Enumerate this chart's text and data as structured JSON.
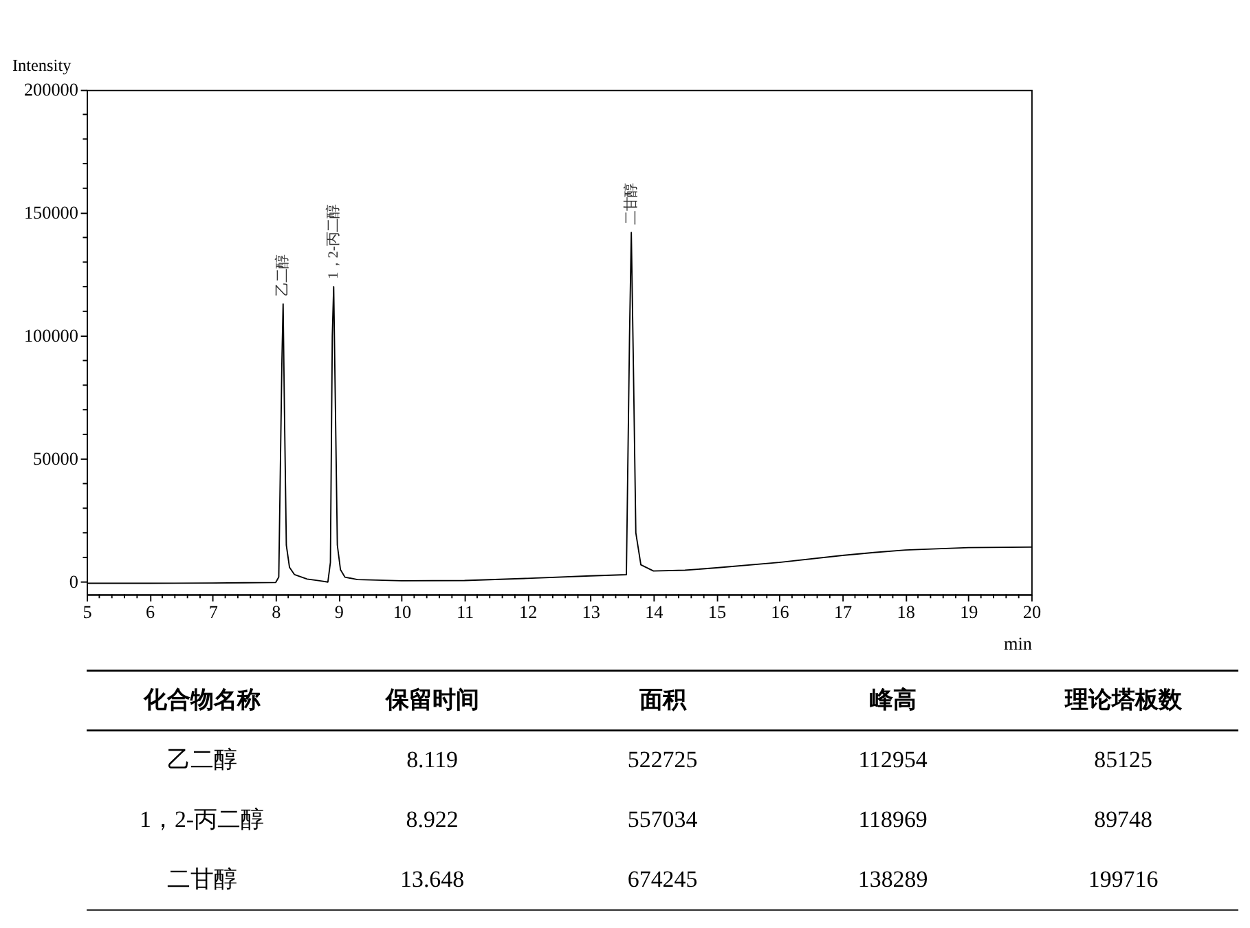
{
  "chart_data": [
    {
      "type": "line",
      "ylabel": "Intensity",
      "xlabel": "min",
      "series": [
        {
          "color": "#000000",
          "x": [
            5,
            6,
            7,
            7.5,
            8.0,
            8.05,
            8.1,
            8.119,
            8.14,
            8.17,
            8.22,
            8.3,
            8.5,
            8.7,
            8.83,
            8.87,
            8.9,
            8.922,
            8.95,
            8.98,
            9.03,
            9.1,
            9.3,
            10,
            11,
            12,
            13,
            13.57,
            13.62,
            13.648,
            13.68,
            13.72,
            13.8,
            14,
            14.5,
            15,
            16,
            17,
            17.5,
            18,
            19,
            20
          ],
          "values": [
            -500,
            -500,
            -400,
            -300,
            -200,
            2000,
            90000,
            113000,
            70000,
            15000,
            6000,
            3000,
            1200,
            500,
            0,
            8000,
            100000,
            120000,
            70000,
            15000,
            5000,
            2000,
            1000,
            500,
            600,
            1500,
            2500,
            3000,
            100000,
            142000,
            90000,
            20000,
            7000,
            4500,
            4800,
            5800,
            8000,
            10800,
            12000,
            13000,
            14000,
            14200
          ]
        }
      ],
      "xlim": [
        5,
        20
      ],
      "ylim": [
        -5000,
        200000
      ],
      "xticks": [
        5,
        {
          "value": 5.2,
          "label": null
        },
        {
          "value": 5.4,
          "label": null
        },
        {
          "value": 5.6,
          "label": null
        },
        {
          "value": 5.8,
          "label": null
        },
        6,
        {
          "value": 6.2,
          "label": null
        },
        {
          "value": 6.4,
          "label": null
        },
        {
          "value": 6.6,
          "label": null
        },
        {
          "value": 6.8,
          "label": null
        },
        7,
        {
          "value": 7.2,
          "label": null
        },
        {
          "value": 7.4,
          "label": null
        },
        {
          "value": 7.6,
          "label": null
        },
        {
          "value": 7.8,
          "label": null
        },
        8,
        {
          "value": 8.2,
          "label": null
        },
        {
          "value": 8.4,
          "label": null
        },
        {
          "value": 8.6,
          "label": null
        },
        {
          "value": 8.8,
          "label": null
        },
        9,
        {
          "value": 9.2,
          "label": null
        },
        {
          "value": 9.4,
          "label": null
        },
        {
          "value": 9.6,
          "label": null
        },
        {
          "value": 9.8,
          "label": null
        },
        10,
        {
          "value": 10.2,
          "label": null
        },
        {
          "value": 10.4,
          "label": null
        },
        {
          "value": 10.6,
          "label": null
        },
        {
          "value": 10.8,
          "label": null
        },
        11,
        {
          "value": 11.2,
          "label": null
        },
        {
          "value": 11.4,
          "label": null
        },
        {
          "value": 11.6,
          "label": null
        },
        {
          "value": 11.8,
          "label": null
        },
        12,
        {
          "value": 12.2,
          "label": null
        },
        {
          "value": 12.4,
          "label": null
        },
        {
          "value": 12.6,
          "label": null
        },
        {
          "value": 12.8,
          "label": null
        },
        13,
        {
          "value": 13.2,
          "label": null
        },
        {
          "value": 13.4,
          "label": null
        },
        {
          "value": 13.6,
          "label": null
        },
        {
          "value": 13.8,
          "label": null
        },
        14,
        {
          "value": 14.2,
          "label": null
        },
        {
          "value": 14.4,
          "label": null
        },
        {
          "value": 14.6,
          "label": null
        },
        {
          "value": 14.8,
          "label": null
        },
        15,
        {
          "value": 15.2,
          "label": null
        },
        {
          "value": 15.4,
          "label": null
        },
        {
          "value": 15.6,
          "label": null
        },
        {
          "value": 15.8,
          "label": null
        },
        16,
        {
          "value": 16.2,
          "label": null
        },
        {
          "value": 16.4,
          "label": null
        },
        {
          "value": 16.6,
          "label": null
        },
        {
          "value": 16.8,
          "label": null
        },
        17,
        {
          "value": 17.2,
          "label": null
        },
        {
          "value": 17.4,
          "label": null
        },
        {
          "value": 17.6,
          "label": null
        },
        {
          "value": 17.8,
          "label": null
        },
        18,
        {
          "value": 18.2,
          "label": null
        },
        {
          "value": 18.4,
          "label": null
        },
        {
          "value": 18.6,
          "label": null
        },
        {
          "value": 18.8,
          "label": null
        },
        19,
        {
          "value": 19.2,
          "label": null
        },
        {
          "value": 19.4,
          "label": null
        },
        {
          "value": 19.6,
          "label": null
        },
        {
          "value": 19.8,
          "label": null
        },
        20
      ],
      "yticks": [
        0,
        {
          "value": 10000,
          "label": null
        },
        {
          "value": 20000,
          "label": null
        },
        {
          "value": 30000,
          "label": null
        },
        {
          "value": 40000,
          "label": null
        },
        50000,
        {
          "value": 60000,
          "label": null
        },
        {
          "value": 70000,
          "label": null
        },
        {
          "value": 80000,
          "label": null
        },
        {
          "value": 90000,
          "label": null
        },
        100000,
        {
          "value": 110000,
          "label": null
        },
        {
          "value": 120000,
          "label": null
        },
        {
          "value": 130000,
          "label": null
        },
        {
          "value": 140000,
          "label": null
        },
        150000,
        {
          "value": 160000,
          "label": null
        },
        {
          "value": 170000,
          "label": null
        },
        {
          "value": 180000,
          "label": null
        },
        {
          "value": 190000,
          "label": null
        },
        200000
      ],
      "annotations": [
        {
          "text": "乙二醇",
          "x": 8.119,
          "y": 113000
        },
        {
          "text": "1，2-丙二醇",
          "x": 8.922,
          "y": 120000
        },
        {
          "text": "二甘醇",
          "x": 13.648,
          "y": 142000
        }
      ],
      "marker": "none",
      "line_style": "solid",
      "grid": false
    },
    {
      "type": "other",
      "categories": [
        "化合物名称",
        "保留时间",
        "面积",
        "峰高",
        "理论塔板数"
      ],
      "y_categories": [
        "乙二醇",
        "1，2-丙二醇",
        "二甘醇"
      ],
      "cell_labels": [
        [
          "8.119",
          "522725",
          "112954",
          "85125"
        ],
        [
          "8.922",
          "557034",
          "118969",
          "89748"
        ],
        [
          "13.648",
          "674245",
          "138289",
          "199716"
        ]
      ]
    }
  ]
}
